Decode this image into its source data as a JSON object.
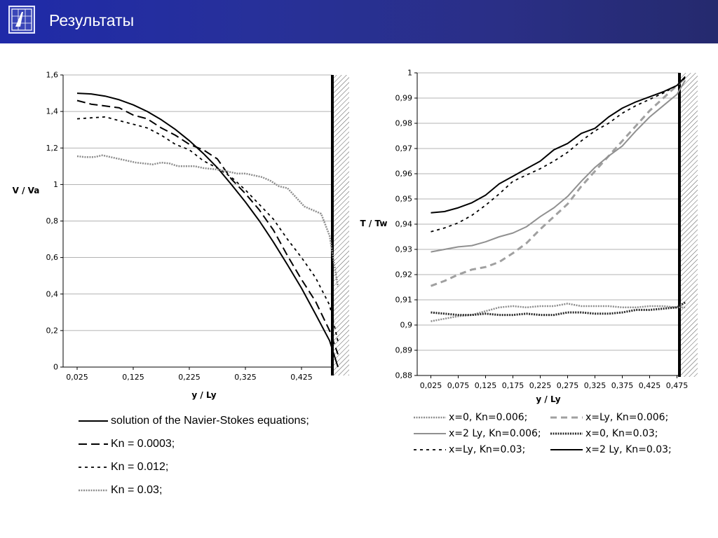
{
  "header": {
    "title": "Результаты",
    "logo_icon": "logo-icon",
    "colors": {
      "gradient_start": "#1f2aa8",
      "gradient_end": "#252a6e"
    }
  },
  "chart_data": [
    {
      "type": "line",
      "title": "",
      "xlabel": "y / Ly",
      "ylabel": "V / Va",
      "xlim": [
        0,
        0.5
      ],
      "ylim": [
        0,
        1.6
      ],
      "xticks": [
        0.025,
        0.125,
        0.225,
        0.325,
        0.425
      ],
      "xtick_labels": [
        "0,025",
        "0,125",
        "0,225",
        "0,325",
        "0,425"
      ],
      "yticks": [
        0,
        0.2,
        0.4,
        0.6,
        0.8,
        1.0,
        1.2,
        1.4,
        1.6
      ],
      "ytick_labels": [
        "0",
        "0,2",
        "0,4",
        "0,6",
        "0,8",
        "1",
        "1,2",
        "1,4",
        "1,6"
      ],
      "grid": true,
      "wall": {
        "x": 0.5,
        "style": "hatched"
      },
      "legend_position": "bottom",
      "series": [
        {
          "name": "solution of the Navier-Stokes equations;",
          "style": "solid",
          "color": "#000000",
          "x": [
            0.025,
            0.05,
            0.075,
            0.1,
            0.125,
            0.15,
            0.175,
            0.2,
            0.225,
            0.25,
            0.275,
            0.3,
            0.325,
            0.35,
            0.375,
            0.4,
            0.425,
            0.45,
            0.475,
            0.49
          ],
          "y": [
            1.5,
            1.496,
            1.484,
            1.464,
            1.436,
            1.4,
            1.355,
            1.302,
            1.24,
            1.17,
            1.092,
            1.0,
            0.904,
            0.8,
            0.684,
            0.56,
            0.432,
            0.29,
            0.145,
            0.0
          ]
        },
        {
          "name": "Kn = 0.0003;",
          "style": "long-dash",
          "color": "#000000",
          "x": [
            0.025,
            0.05,
            0.075,
            0.1,
            0.125,
            0.15,
            0.175,
            0.2,
            0.225,
            0.25,
            0.275,
            0.3,
            0.325,
            0.35,
            0.375,
            0.4,
            0.425,
            0.45,
            0.475,
            0.49
          ],
          "y": [
            1.46,
            1.44,
            1.43,
            1.42,
            1.38,
            1.36,
            1.31,
            1.27,
            1.22,
            1.19,
            1.14,
            1.03,
            0.95,
            0.86,
            0.75,
            0.61,
            0.48,
            0.36,
            0.2,
            0.07
          ]
        },
        {
          "name": "Kn = 0.012;",
          "style": "short-dash",
          "color": "#000000",
          "x": [
            0.025,
            0.05,
            0.075,
            0.1,
            0.125,
            0.15,
            0.175,
            0.2,
            0.225,
            0.25,
            0.275,
            0.3,
            0.325,
            0.35,
            0.375,
            0.4,
            0.425,
            0.45,
            0.475,
            0.49
          ],
          "y": [
            1.36,
            1.365,
            1.37,
            1.35,
            1.33,
            1.31,
            1.27,
            1.22,
            1.19,
            1.13,
            1.09,
            1.04,
            0.97,
            0.89,
            0.81,
            0.7,
            0.6,
            0.49,
            0.34,
            0.14
          ]
        },
        {
          "name": "Kn = 0.03;",
          "style": "gray-dotted",
          "color": "#808080",
          "x": [
            0.025,
            0.04,
            0.055,
            0.07,
            0.085,
            0.1,
            0.115,
            0.13,
            0.145,
            0.16,
            0.175,
            0.19,
            0.205,
            0.22,
            0.235,
            0.25,
            0.265,
            0.28,
            0.295,
            0.31,
            0.325,
            0.34,
            0.355,
            0.37,
            0.385,
            0.4,
            0.415,
            0.43,
            0.445,
            0.46,
            0.475,
            0.49
          ],
          "y": [
            1.155,
            1.15,
            1.15,
            1.16,
            1.15,
            1.14,
            1.13,
            1.12,
            1.115,
            1.11,
            1.12,
            1.115,
            1.1,
            1.1,
            1.1,
            1.09,
            1.085,
            1.08,
            1.07,
            1.06,
            1.06,
            1.05,
            1.04,
            1.02,
            0.99,
            0.98,
            0.93,
            0.88,
            0.86,
            0.84,
            0.72,
            0.44
          ]
        }
      ]
    },
    {
      "type": "line",
      "title": "",
      "xlabel": "y / Ly",
      "ylabel": "T / Tw",
      "xlim": [
        0,
        0.5
      ],
      "ylim": [
        0.88,
        1.0
      ],
      "xticks": [
        0.025,
        0.075,
        0.125,
        0.175,
        0.225,
        0.275,
        0.325,
        0.375,
        0.425,
        0.475
      ],
      "xtick_labels": [
        "0,025",
        "0,075",
        "0,125",
        "0,175",
        "0,225",
        "0,275",
        "0,325",
        "0,375",
        "0,425",
        "0,475"
      ],
      "yticks": [
        0.88,
        0.89,
        0.9,
        0.91,
        0.92,
        0.93,
        0.94,
        0.95,
        0.96,
        0.97,
        0.98,
        0.99,
        1.0
      ],
      "ytick_labels": [
        "0,88",
        "0,89",
        "0,9",
        "0,91",
        "0,92",
        "0,93",
        "0,94",
        "0,95",
        "0,96",
        "0,97",
        "0,98",
        "0,99",
        "1"
      ],
      "grid": true,
      "wall": {
        "x": 0.5,
        "style": "hatched"
      },
      "legend_position": "bottom",
      "series": [
        {
          "name": "x=0, Kn=0.006;",
          "style": "gray-dotted",
          "color": "#a0a0a0",
          "x": [
            0.025,
            0.05,
            0.075,
            0.1,
            0.125,
            0.15,
            0.175,
            0.2,
            0.225,
            0.25,
            0.275,
            0.3,
            0.325,
            0.35,
            0.375,
            0.4,
            0.425,
            0.45,
            0.475,
            0.49
          ],
          "y": [
            0.9015,
            0.9025,
            0.9035,
            0.904,
            0.9055,
            0.907,
            0.9075,
            0.907,
            0.9075,
            0.9075,
            0.9085,
            0.9075,
            0.9075,
            0.9075,
            0.907,
            0.907,
            0.9075,
            0.9075,
            0.907,
            0.907
          ]
        },
        {
          "name": "x=Ly, Kn=0.006;",
          "style": "thick-gray-dash",
          "color": "#a0a0a0",
          "x": [
            0.025,
            0.05,
            0.075,
            0.1,
            0.125,
            0.15,
            0.175,
            0.2,
            0.225,
            0.25,
            0.275,
            0.3,
            0.325,
            0.35,
            0.375,
            0.4,
            0.425,
            0.45,
            0.475,
            0.49
          ],
          "y": [
            0.9155,
            0.9175,
            0.92,
            0.922,
            0.923,
            0.925,
            0.9285,
            0.9325,
            0.938,
            0.943,
            0.948,
            0.955,
            0.961,
            0.967,
            0.973,
            0.979,
            0.985,
            0.99,
            0.995,
            0.998
          ]
        },
        {
          "name": "x=2 Ly, Kn=0.006;",
          "style": "gray-solid",
          "color": "#909090",
          "x": [
            0.025,
            0.05,
            0.075,
            0.1,
            0.125,
            0.15,
            0.175,
            0.2,
            0.225,
            0.25,
            0.275,
            0.3,
            0.325,
            0.35,
            0.375,
            0.4,
            0.425,
            0.45,
            0.475,
            0.49
          ],
          "y": [
            0.929,
            0.93,
            0.931,
            0.9315,
            0.933,
            0.935,
            0.9365,
            0.939,
            0.943,
            0.9465,
            0.951,
            0.957,
            0.9625,
            0.967,
            0.971,
            0.977,
            0.9825,
            0.987,
            0.9915,
            0.997
          ]
        },
        {
          "name": "x=0, Kn=0.03;",
          "style": "dark-dotted",
          "color": "#303030",
          "x": [
            0.025,
            0.05,
            0.075,
            0.1,
            0.125,
            0.15,
            0.175,
            0.2,
            0.225,
            0.25,
            0.275,
            0.3,
            0.325,
            0.35,
            0.375,
            0.4,
            0.425,
            0.45,
            0.475,
            0.49
          ],
          "y": [
            0.905,
            0.9045,
            0.904,
            0.904,
            0.9045,
            0.904,
            0.904,
            0.9045,
            0.904,
            0.904,
            0.905,
            0.905,
            0.9045,
            0.9045,
            0.905,
            0.906,
            0.906,
            0.9065,
            0.907,
            0.909
          ]
        },
        {
          "name": "x=Ly, Kn=0.03;",
          "style": "short-dash",
          "color": "#000000",
          "x": [
            0.025,
            0.05,
            0.075,
            0.1,
            0.125,
            0.15,
            0.175,
            0.2,
            0.225,
            0.25,
            0.275,
            0.3,
            0.325,
            0.35,
            0.375,
            0.4,
            0.425,
            0.45,
            0.475,
            0.49
          ],
          "y": [
            0.937,
            0.9385,
            0.9405,
            0.9435,
            0.9475,
            0.952,
            0.957,
            0.9595,
            0.962,
            0.965,
            0.9685,
            0.973,
            0.977,
            0.98,
            0.984,
            0.987,
            0.9895,
            0.992,
            0.995,
            0.998
          ]
        },
        {
          "name": "x=2 Ly, Kn=0.03;",
          "style": "solid",
          "color": "#000000",
          "x": [
            0.025,
            0.05,
            0.075,
            0.1,
            0.125,
            0.15,
            0.175,
            0.2,
            0.225,
            0.25,
            0.275,
            0.3,
            0.325,
            0.35,
            0.375,
            0.4,
            0.425,
            0.45,
            0.475,
            0.49
          ],
          "y": [
            0.9445,
            0.945,
            0.9465,
            0.9485,
            0.9515,
            0.956,
            0.959,
            0.962,
            0.965,
            0.9695,
            0.972,
            0.976,
            0.978,
            0.9825,
            0.986,
            0.9885,
            0.9905,
            0.9925,
            0.995,
            0.9985
          ]
        }
      ]
    }
  ]
}
